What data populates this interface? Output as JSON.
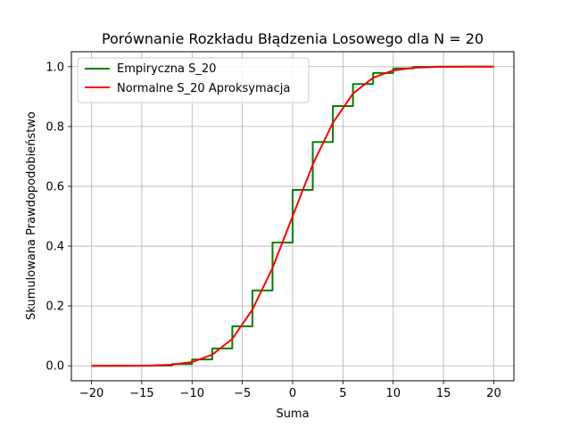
{
  "chart_data": {
    "type": "line",
    "title": "Porównanie Rozkładu Błądzenia Losowego dla N = 20",
    "xlabel": "Suma",
    "ylabel": "Skumulowana Prawdopodobieństwo",
    "xlim": [
      -22,
      22
    ],
    "ylim": [
      -0.05,
      1.05
    ],
    "xticks": [
      -20,
      -15,
      -10,
      -5,
      0,
      5,
      10,
      15,
      20
    ],
    "xtick_labels": [
      "−20",
      "−15",
      "−10",
      "−5",
      "0",
      "5",
      "10",
      "15",
      "20"
    ],
    "yticks": [
      0.0,
      0.2,
      0.4,
      0.6,
      0.8,
      1.0
    ],
    "ytick_labels": [
      "0.0",
      "0.2",
      "0.4",
      "0.6",
      "0.8",
      "1.0"
    ],
    "grid": true,
    "legend_position": "top-left",
    "series": [
      {
        "name": "Empiryczna S_20",
        "color": "#008000",
        "step": true,
        "x": [
          -20,
          -18,
          -16,
          -14,
          -12,
          -10,
          -8,
          -6,
          -4,
          -2,
          0,
          2,
          4,
          6,
          8,
          10,
          12,
          14,
          16,
          18,
          20
        ],
        "y": [
          0.0,
          0.0,
          0.0,
          0.0005,
          0.006,
          0.021,
          0.058,
          0.132,
          0.252,
          0.412,
          0.588,
          0.748,
          0.868,
          0.942,
          0.979,
          0.994,
          0.9995,
          1.0,
          1.0,
          1.0,
          1.0
        ]
      },
      {
        "name": "Normalne S_20 Aproksymacja",
        "color": "#ff0000",
        "step": false,
        "x": [
          -20,
          -18,
          -16,
          -14,
          -12,
          -10,
          -8,
          -6,
          -4,
          -2,
          0,
          2,
          4,
          6,
          8,
          10,
          12,
          14,
          16,
          18,
          20
        ],
        "y": [
          0.0,
          0.0,
          0.0002,
          0.0009,
          0.0036,
          0.0125,
          0.037,
          0.09,
          0.188,
          0.327,
          0.5,
          0.673,
          0.812,
          0.91,
          0.963,
          0.9875,
          0.9964,
          0.9991,
          0.9998,
          1.0,
          1.0
        ]
      }
    ]
  }
}
